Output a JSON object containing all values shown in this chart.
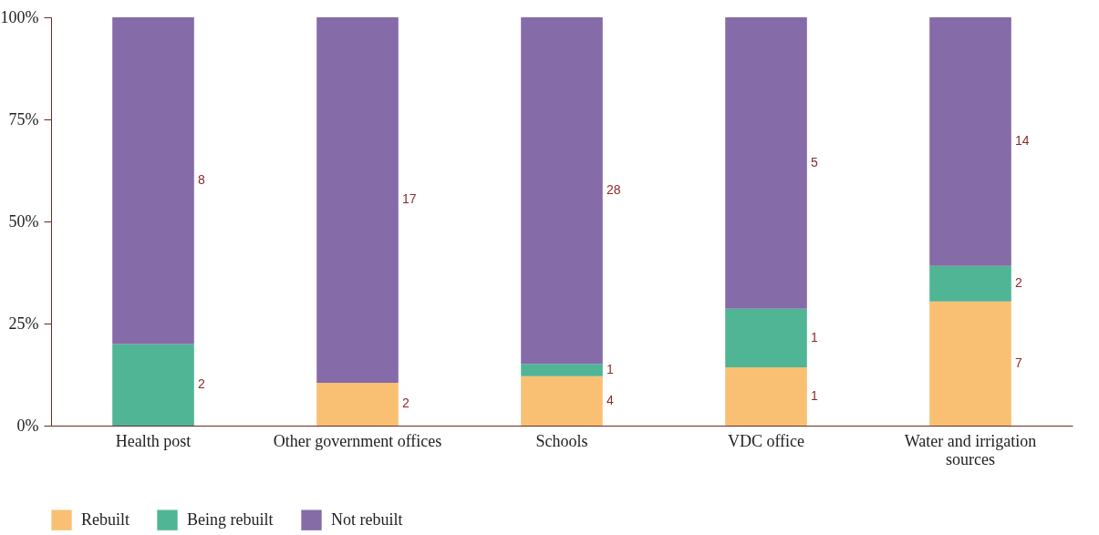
{
  "chart_data": {
    "type": "bar",
    "stacked": true,
    "categories": [
      "Health post",
      "Other government offices",
      "Schools",
      "VDC office",
      "Water and irrigation sources"
    ],
    "series": [
      {
        "name": "Rebuilt",
        "color": "#f9c074",
        "values": [
          null,
          10.5,
          12.1,
          14.3,
          30.4
        ]
      },
      {
        "name": "Being rebuilt",
        "color": "#4fb595",
        "values": [
          20,
          null,
          3.0,
          14.3,
          8.7
        ]
      },
      {
        "name": "Not rebuilt",
        "color": "#856ba8",
        "values": [
          80,
          89.5,
          84.9,
          71.4,
          60.9
        ]
      }
    ],
    "annotations": [
      "2",
      "8",
      "2",
      "17",
      "4",
      "1",
      "28",
      "1",
      "1",
      "5",
      "7",
      "2",
      "14"
    ],
    "ylim": [
      0,
      100
    ],
    "yticks": [
      {
        "value": 0,
        "label": "0%"
      },
      {
        "value": 25,
        "label": "25%"
      },
      {
        "value": 50,
        "label": "50%"
      },
      {
        "value": 75,
        "label": "75%"
      },
      {
        "value": 100,
        "label": "100%"
      }
    ],
    "grid": false,
    "legend": "bottom left"
  }
}
